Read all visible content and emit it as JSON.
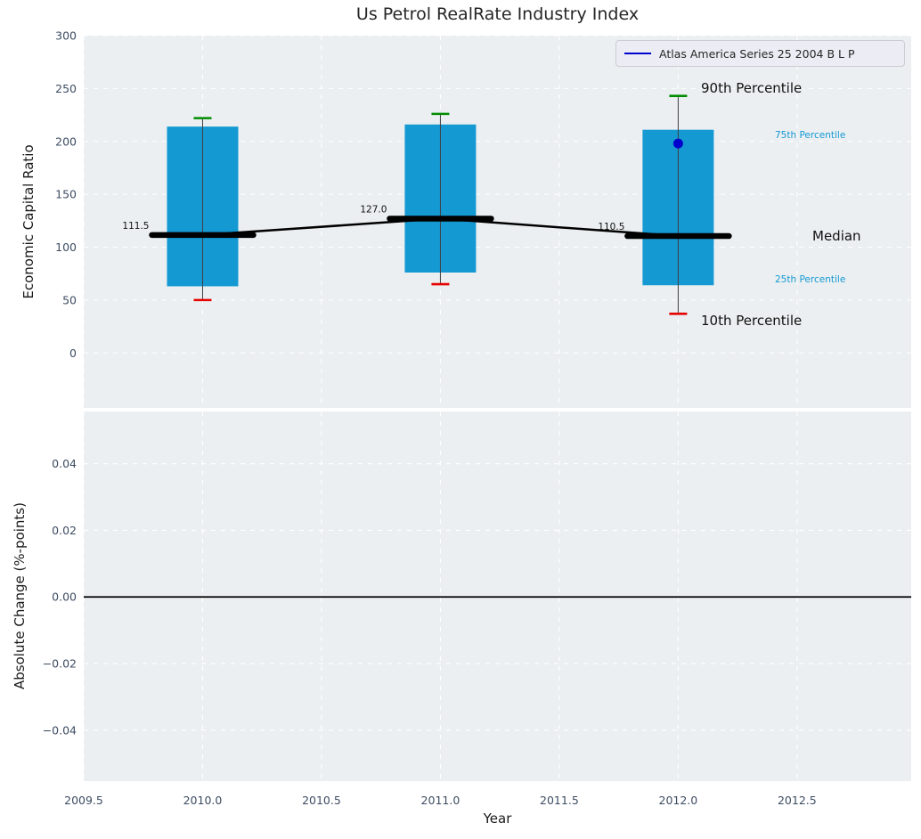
{
  "title": "Us Petrol RealRate Industry Index",
  "legend": {
    "label": "Atlas America Series 25 2004 B L P"
  },
  "annotations": {
    "p90": "90th Percentile",
    "p75": "75th Percentile",
    "median": "Median",
    "p25": "25th Percentile",
    "p10": "10th Percentile"
  },
  "colors": {
    "box_fill": "#1599d3",
    "p90_cap": "#008c00",
    "p10_cap": "#e60000",
    "series_blue": "#0000cd",
    "median_line": "#000000",
    "whisker_line": "#3f3f3f",
    "plot_bg": "#ebeff1",
    "grid": "#ffffff",
    "tick_label": "#3d4c63",
    "percentile_label": "#1599d3",
    "zero_line": "#000000"
  },
  "chart_data": {
    "type": "boxplot",
    "title": "Us Petrol RealRate Industry Index",
    "xlabel": "Year",
    "x_axis": {
      "ticks": [
        2009.5,
        2010.0,
        2010.5,
        2011.0,
        2011.5,
        2012.0,
        2012.5
      ],
      "tick_labels": [
        "2009.5",
        "2010.0",
        "2010.5",
        "2011.0",
        "2011.5",
        "2012.0",
        "2012.5"
      ],
      "lim": [
        2009.5,
        2012.98
      ]
    },
    "top_panel": {
      "ylabel": "Economic Capital Ratio",
      "yticks": [
        0,
        50,
        100,
        150,
        200,
        250,
        300
      ],
      "ytick_labels": [
        "0",
        "50",
        "100",
        "150",
        "200",
        "250",
        "300"
      ],
      "ylim": [
        -52,
        300
      ],
      "grid": true,
      "legend_position": "upper right",
      "boxes": [
        {
          "year": 2010.0,
          "p10": 50,
          "p25": 63,
          "median": 111.5,
          "p75": 214,
          "p90": 222,
          "median_label": "111.5"
        },
        {
          "year": 2011.0,
          "p10": 65,
          "p25": 76,
          "median": 127.0,
          "p75": 216,
          "p90": 226,
          "median_label": "127.0"
        },
        {
          "year": 2012.0,
          "p10": 37,
          "p25": 64,
          "median": 110.5,
          "p75": 211,
          "p90": 243,
          "median_label": "110.5"
        }
      ],
      "median_trend": {
        "x": [
          2010.0,
          2011.0,
          2012.0
        ],
        "y": [
          111.5,
          127.0,
          110.5
        ]
      },
      "series": [
        {
          "name": "Atlas America Series 25 2004 B L P",
          "points": [
            {
              "x": 2012.0,
              "y": 198
            }
          ]
        }
      ]
    },
    "bottom_panel": {
      "ylabel": "Absolute Change (%-points)",
      "yticks": [
        0.04,
        0.02,
        0.0,
        -0.02,
        -0.04
      ],
      "ytick_labels": [
        "0.04",
        "0.02",
        "0.00",
        "−0.02",
        "−0.04"
      ],
      "ylim": [
        -0.0553,
        0.0557
      ],
      "grid": true,
      "zero_line": 0.0
    }
  }
}
